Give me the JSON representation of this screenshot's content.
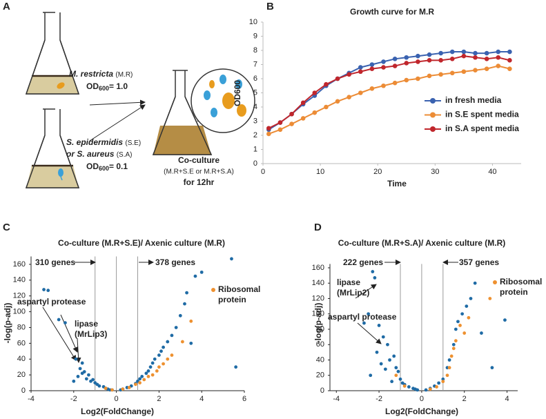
{
  "panel_labels": [
    "A",
    "B",
    "C",
    "D"
  ],
  "diagram": {
    "culture_1": {
      "species": "M. restricta",
      "abbr": "(M.R)",
      "od": "OD",
      "od_sub": "600",
      "od_value": "= 1.0"
    },
    "culture_2": {
      "species": "S. epidermidis",
      "abbr": "(S.E)",
      "conj": "or",
      "species_2": "S. aureus",
      "abbr_2": "(S.A)",
      "od": "OD",
      "od_sub": "600",
      "od_value": "= 0.1"
    },
    "coculture": {
      "title": "Co-culture",
      "condition": "(M.R+S.E or M.R+S.A)",
      "duration": "for 12hr"
    }
  },
  "chart_data": [
    {
      "type": "line",
      "title": "Growth curve for M.R",
      "x_label": "Time",
      "y_label": "OD600",
      "x": [
        1,
        3,
        5,
        7,
        9,
        11,
        13,
        15,
        17,
        19,
        21,
        23,
        25,
        27,
        29,
        31,
        33,
        35,
        37,
        39,
        41,
        43
      ],
      "series": [
        {
          "name": "in fresh media",
          "color": "#3a62b0",
          "values": [
            2.4,
            2.9,
            3.5,
            4.2,
            4.8,
            5.5,
            6.0,
            6.4,
            6.8,
            7.0,
            7.2,
            7.4,
            7.5,
            7.6,
            7.7,
            7.8,
            7.9,
            7.9,
            7.8,
            7.8,
            7.9,
            7.9
          ]
        },
        {
          "name": "in S.E spent media",
          "color": "#ec8c36",
          "values": [
            2.1,
            2.4,
            2.8,
            3.2,
            3.6,
            4.0,
            4.4,
            4.7,
            5.0,
            5.3,
            5.5,
            5.7,
            5.9,
            6.0,
            6.2,
            6.3,
            6.4,
            6.5,
            6.6,
            6.7,
            6.9,
            6.7
          ]
        },
        {
          "name": "in S.A spent media",
          "color": "#c0262c",
          "values": [
            2.5,
            2.9,
            3.5,
            4.3,
            5.0,
            5.6,
            6.0,
            6.3,
            6.5,
            6.7,
            6.8,
            6.9,
            7.1,
            7.2,
            7.3,
            7.3,
            7.4,
            7.6,
            7.5,
            7.4,
            7.5,
            7.3
          ]
        }
      ],
      "xlim": [
        0,
        45
      ],
      "xticks": [
        0,
        10,
        20,
        30,
        40
      ],
      "ylim": [
        0,
        10
      ],
      "yticks": [
        0,
        1,
        2,
        3,
        4,
        5,
        6,
        7,
        8,
        9,
        10
      ]
    },
    {
      "type": "scatter",
      "title": "Co-culture (M.R+S.E)/ Axenic culture (M.R)",
      "x_label": "Log2(FoldChange)",
      "y_label": "-log(p-adj)",
      "annotations": [
        "310 genes",
        "378 genes",
        "aspartyl protease",
        "lipase (MrLip3)"
      ],
      "vlines": [
        -1,
        0,
        1
      ],
      "series": [
        {
          "color": "#1f6ba5",
          "x": [
            -3.4,
            -3.2,
            -2.7,
            -2.4,
            -1.9,
            -1.7,
            -1.5,
            -1.8,
            -1.6,
            -1.4,
            -1.3,
            -1.2,
            -1.1,
            -1.0,
            -0.9,
            -0.8,
            -0.6,
            -0.5,
            -0.4,
            -0.3,
            -0.2,
            0.2,
            0.3,
            0.5,
            0.7,
            0.9,
            1.0,
            1.1,
            1.2,
            1.4,
            1.5,
            1.6,
            1.7,
            1.8,
            2.0,
            2.1,
            2.2,
            2.4,
            2.6,
            2.8,
            3.0,
            3.2,
            3.3,
            3.5,
            3.7,
            4.0,
            5.4,
            5.6,
            -2.0,
            -1.6
          ],
          "y": [
            128,
            127,
            90,
            86,
            40,
            28,
            24,
            18,
            22,
            15,
            20,
            12,
            14,
            10,
            8,
            6,
            5,
            3,
            2,
            1,
            1,
            1,
            2,
            4,
            6,
            9,
            12,
            15,
            18,
            22,
            25,
            30,
            35,
            40,
            45,
            50,
            55,
            62,
            70,
            80,
            95,
            110,
            124,
            60,
            145,
            150,
            167,
            30,
            12,
            35
          ]
        },
        {
          "name": "Ribosomal protein",
          "color": "#ee9130",
          "x": [
            0.3,
            0.6,
            0.9,
            1.1,
            1.3,
            1.5,
            1.7,
            1.9,
            2.0,
            2.2,
            2.4,
            2.6,
            3.1,
            3.5,
            -0.5,
            -0.2
          ],
          "y": [
            2,
            4,
            8,
            10,
            14,
            18,
            20,
            25,
            30,
            34,
            40,
            45,
            62,
            88,
            3,
            1
          ]
        }
      ],
      "xlim": [
        -4,
        6
      ],
      "xticks": [
        -4,
        -2,
        0,
        2,
        4,
        6
      ],
      "ylim": [
        0,
        170
      ],
      "yticks": [
        0,
        20,
        40,
        60,
        80,
        100,
        120,
        140,
        160
      ]
    },
    {
      "type": "scatter",
      "title": "Co-culture (M.R+S.A)/ Axenic culture (M.R)",
      "x_label": "Log2(FoldChange)",
      "y_label": "-log(p-adj)",
      "annotations": [
        "222 genes",
        "357 genes",
        "lipase (MrLip2)",
        "aspartyl protease"
      ],
      "vlines": [
        -1,
        0,
        1
      ],
      "series": [
        {
          "color": "#1f6ba5",
          "x": [
            -2.3,
            -2.2,
            -2.5,
            -2.7,
            -2.0,
            -1.8,
            -1.6,
            -1.5,
            -1.3,
            -1.2,
            -1.1,
            -1.0,
            -0.9,
            -0.8,
            -0.6,
            -0.4,
            -0.3,
            -0.2,
            0.2,
            0.4,
            0.6,
            0.8,
            1.0,
            1.2,
            1.3,
            1.5,
            1.6,
            1.7,
            1.9,
            2.1,
            2.3,
            2.5,
            2.8,
            3.3,
            3.9,
            -2.1,
            -1.9,
            -2.4,
            -1.7,
            -1.4
          ],
          "y": [
            155,
            147,
            100,
            88,
            85,
            70,
            60,
            40,
            45,
            30,
            25,
            15,
            10,
            8,
            5,
            3,
            2,
            1,
            1,
            3,
            6,
            10,
            15,
            30,
            40,
            60,
            80,
            90,
            100,
            110,
            120,
            140,
            75,
            30,
            92,
            50,
            35,
            20,
            28,
            12
          ]
        },
        {
          "name": "Ribosomal protein",
          "color": "#ee9130",
          "x": [
            0.4,
            0.7,
            1.0,
            1.2,
            1.3,
            1.4,
            1.5,
            1.6,
            1.8,
            2.0,
            2.2,
            -0.8,
            -1.2,
            3.2
          ],
          "y": [
            2,
            5,
            12,
            20,
            30,
            45,
            55,
            65,
            85,
            75,
            95,
            6,
            20,
            120
          ]
        }
      ],
      "xlim": [
        -4.3,
        4.5
      ],
      "xticks": [
        -4,
        -2,
        0,
        2,
        4
      ],
      "ylim": [
        0,
        165
      ],
      "yticks": [
        0,
        20,
        40,
        60,
        80,
        100,
        120,
        140,
        160
      ]
    }
  ]
}
